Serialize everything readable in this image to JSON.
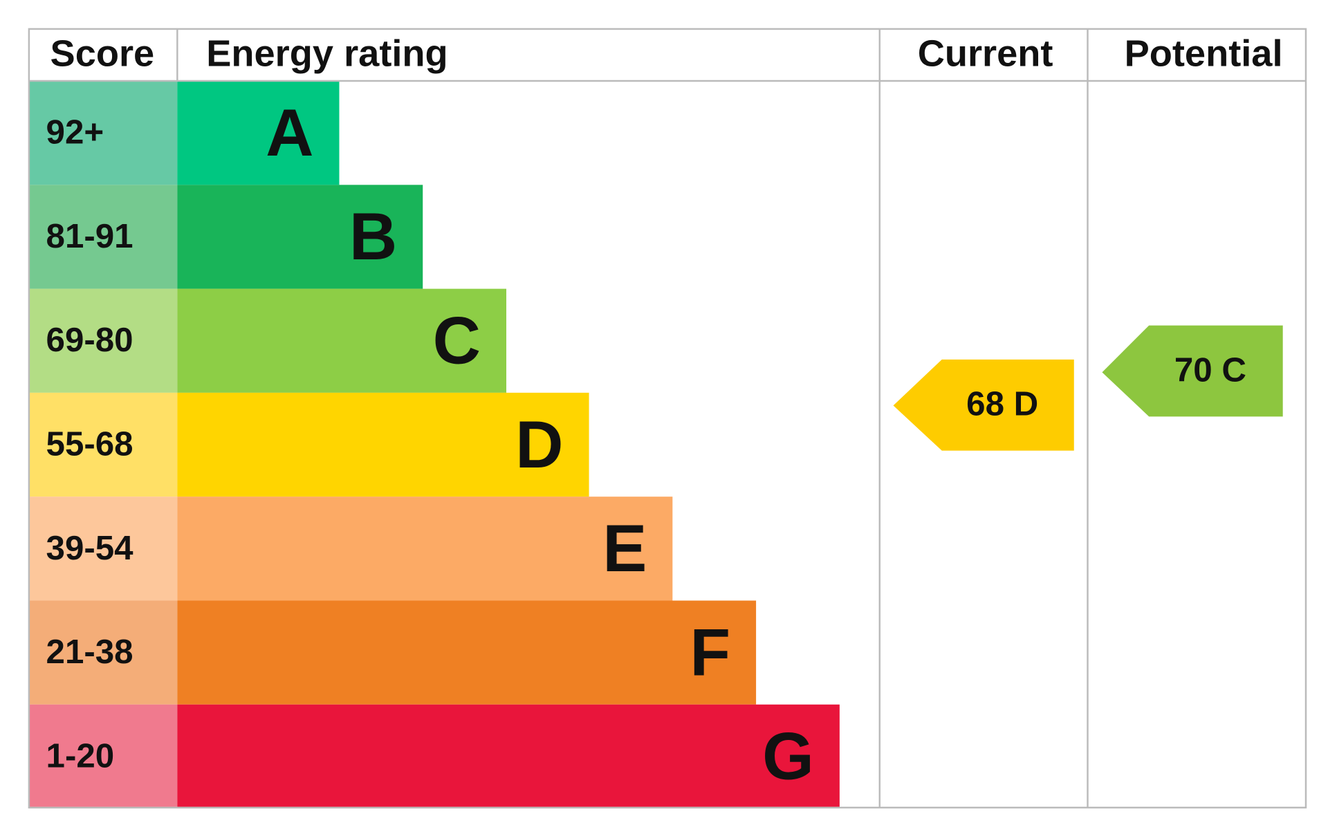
{
  "header": {
    "score": "Score",
    "energy_rating": "Energy rating",
    "current": "Current",
    "potential": "Potential"
  },
  "rows": [
    {
      "score": "92+",
      "letter": "A"
    },
    {
      "score": "81-91",
      "letter": "B"
    },
    {
      "score": "69-80",
      "letter": "C"
    },
    {
      "score": "55-68",
      "letter": "D"
    },
    {
      "score": "39-54",
      "letter": "E"
    },
    {
      "score": "21-38",
      "letter": "F"
    },
    {
      "score": "1-20",
      "letter": "G"
    }
  ],
  "current": {
    "label": "68 D"
  },
  "potential": {
    "label": "70 C"
  }
}
